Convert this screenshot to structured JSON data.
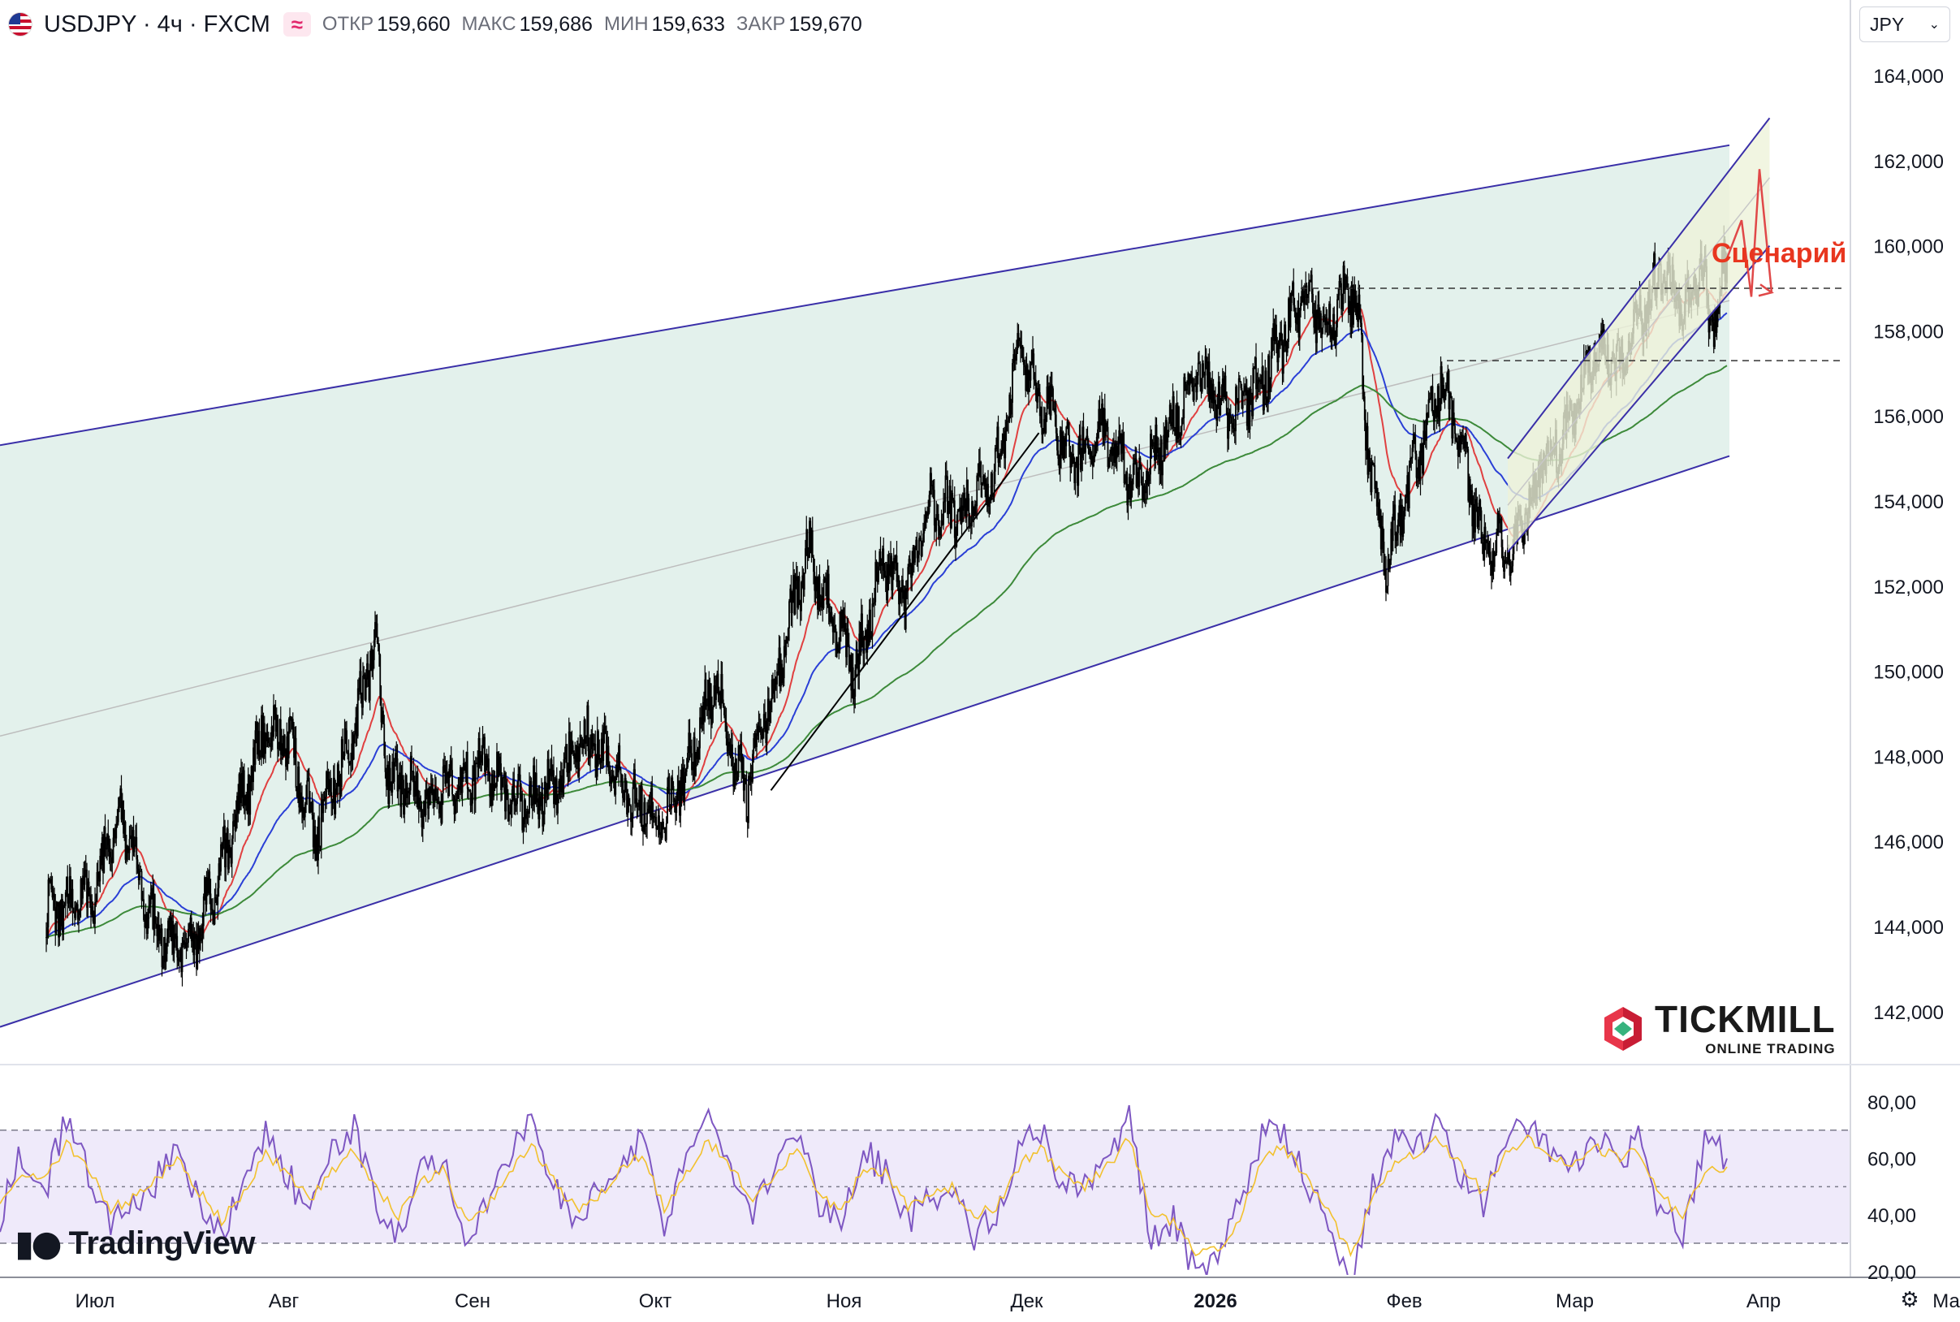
{
  "header": {
    "symbol": "USDJPY · 4ч · FXCM",
    "badge": "≈",
    "open_label": "ОТКР",
    "open_value": "159,660",
    "high_label": "МАКС",
    "high_value": "159,686",
    "low_label": "МИН",
    "low_value": "159,633",
    "close_label": "ЗАКР",
    "close_value": "159,670"
  },
  "currency_button": {
    "label": "JPY",
    "chevron": "chevron-down-icon"
  },
  "watermarks": {
    "tradingview": "TradingView",
    "tickmill": "TICKMILL",
    "tickmill_sub": "ONLINE TRADING"
  },
  "settings_icon": "gear-icon",
  "annotation": {
    "text": "Сценарий",
    "color": "#e8361f"
  },
  "colors": {
    "candle": "#000000",
    "channel_line": "#3a2fa8",
    "channel_fill": "#e3f1ec",
    "ma_fast": "#e04040",
    "ma_mid": "#2a3fd6",
    "ma_slow": "#3d8a3a",
    "rsi_line": "#7e57c2",
    "rsi_signal": "#f2c12e",
    "rsi_fill": "#efeafa"
  },
  "chart_data": [
    {
      "type": "candlestick",
      "title": "USDJPY · 4ч · FXCM",
      "currency": "JPY",
      "x_tick_labels": [
        "Июл",
        "Авг",
        "Сен",
        "Окт",
        "Ноя",
        "Дек",
        "2026",
        "Фев",
        "Мар",
        "Апр",
        "Ма"
      ],
      "y_tick_labels": [
        "164,000",
        "162,000",
        "160,000",
        "158,000",
        "156,000",
        "154,000",
        "152,000",
        "150,000",
        "148,000",
        "146,000",
        "144,000",
        "142,000"
      ],
      "ylim": [
        141.0,
        165.0
      ],
      "close_path": [
        {
          "d": "Jun 23",
          "v": 144.3
        },
        {
          "d": "Jul 01",
          "v": 144.8
        },
        {
          "d": "Jul 05",
          "v": 146.8
        },
        {
          "d": "Jul 11",
          "v": 143.8
        },
        {
          "d": "Jul 16",
          "v": 143.2
        },
        {
          "d": "Jul 22",
          "v": 145.5
        },
        {
          "d": "Jul 29",
          "v": 148.7
        },
        {
          "d": "Aug 02",
          "v": 148.3
        },
        {
          "d": "Aug 06",
          "v": 146.2
        },
        {
          "d": "Aug 12",
          "v": 148.2
        },
        {
          "d": "Aug 16",
          "v": 150.7
        },
        {
          "d": "Aug 18",
          "v": 147.6
        },
        {
          "d": "Aug 25",
          "v": 147.0
        },
        {
          "d": "Sep 03",
          "v": 147.8
        },
        {
          "d": "Sep 08",
          "v": 146.9
        },
        {
          "d": "Sep 15",
          "v": 147.3
        },
        {
          "d": "Sep 20",
          "v": 148.5
        },
        {
          "d": "Sep 27",
          "v": 147.1
        },
        {
          "d": "Oct 02",
          "v": 146.5
        },
        {
          "d": "Oct 06",
          "v": 147.6
        },
        {
          "d": "Oct 11",
          "v": 149.8
        },
        {
          "d": "Oct 14",
          "v": 147.9
        },
        {
          "d": "Oct 16",
          "v": 147.2
        },
        {
          "d": "Oct 22",
          "v": 150.5
        },
        {
          "d": "Oct 26",
          "v": 152.9
        },
        {
          "d": "Oct 30",
          "v": 151.2
        },
        {
          "d": "Nov 03",
          "v": 150.0
        },
        {
          "d": "Nov 07",
          "v": 152.5
        },
        {
          "d": "Nov 11",
          "v": 151.8
        },
        {
          "d": "Nov 15",
          "v": 154.0
        },
        {
          "d": "Nov 20",
          "v": 153.7
        },
        {
          "d": "Nov 26",
          "v": 154.8
        },
        {
          "d": "Nov 30",
          "v": 157.6
        },
        {
          "d": "Dec 04",
          "v": 156.2
        },
        {
          "d": "Dec 08",
          "v": 155.1
        },
        {
          "d": "Dec 14",
          "v": 155.6
        },
        {
          "d": "Dec 19",
          "v": 154.4
        },
        {
          "d": "Dec 24",
          "v": 155.5
        },
        {
          "d": "Dec 29",
          "v": 157.1
        },
        {
          "d": "Jan 03",
          "v": 156.1
        },
        {
          "d": "Jan 09",
          "v": 156.9
        },
        {
          "d": "Jan 15",
          "v": 158.7
        },
        {
          "d": "Jan 19",
          "v": 158.3
        },
        {
          "d": "Jan 24",
          "v": 159.0
        },
        {
          "d": "Jan 26",
          "v": 155.2
        },
        {
          "d": "Jan 29",
          "v": 152.4
        },
        {
          "d": "Feb 03",
          "v": 155.0
        },
        {
          "d": "Feb 07",
          "v": 156.9
        },
        {
          "d": "Feb 10",
          "v": 155.5
        },
        {
          "d": "Feb 14",
          "v": 152.8
        },
        {
          "d": "Feb 19",
          "v": 152.9
        },
        {
          "d": "Feb 24",
          "v": 155.0
        },
        {
          "d": "Feb 28",
          "v": 155.8
        },
        {
          "d": "Mar 04",
          "v": 157.4
        },
        {
          "d": "Mar 08",
          "v": 157.2
        },
        {
          "d": "Mar 12",
          "v": 158.4
        },
        {
          "d": "Mar 15",
          "v": 159.3
        },
        {
          "d": "Mar 19",
          "v": 158.6
        },
        {
          "d": "Mar 22",
          "v": 159.5
        },
        {
          "d": "Mar 23",
          "v": 157.8
        },
        {
          "d": "Mar 26",
          "v": 159.7
        }
      ],
      "series": [
        {
          "name": "",
          "kind": "ma_fast",
          "color": "#e04040"
        },
        {
          "name": "",
          "kind": "ma_mid",
          "color": "#2a3fd6"
        },
        {
          "name": "",
          "kind": "ma_slow",
          "color": "#3d8a3a"
        }
      ],
      "horizontal_levels": [
        159.0,
        157.3
      ],
      "channel": {
        "upper": {
          "from": [
            "Jun 23",
            155.5
          ],
          "to": [
            "Apr 09",
            162.7
          ]
        },
        "lower": {
          "from": [
            "Jun 23",
            142.0
          ],
          "to": [
            "Apr 09",
            155.7
          ]
        }
      },
      "annotation": "Сценарий",
      "grid": false
    },
    {
      "type": "line",
      "title": "",
      "y_tick_labels": [
        "80,00",
        "60,00",
        "40,00",
        "20,00"
      ],
      "ylim": [
        12,
        88
      ],
      "bands": [
        70,
        50,
        30
      ],
      "series": [
        {
          "name": "",
          "color": "#7e57c2",
          "values": [
            40,
            62,
            48,
            75,
            55,
            35,
            44,
            52,
            66,
            44,
            31,
            52,
            69,
            54,
            41,
            62,
            70,
            44,
            34,
            56,
            59,
            30,
            42,
            63,
            72,
            49,
            37,
            47,
            58,
            68,
            35,
            60,
            74,
            56,
            42,
            56,
            72,
            43,
            35,
            64,
            55,
            38,
            46,
            52,
            33,
            42,
            63,
            70,
            52,
            49,
            60,
            75,
            30,
            39,
            19,
            26,
            43,
            68,
            69,
            51,
            36,
            18,
            50,
            66,
            63,
            72,
            54,
            44,
            68,
            72,
            61,
            55,
            69,
            58,
            66,
            42,
            32,
            66,
            60
          ]
        },
        {
          "name": "",
          "color": "#f2c12e",
          "values": [
            46,
            55,
            52,
            65,
            56,
            42,
            46,
            52,
            60,
            48,
            38,
            48,
            61,
            55,
            45,
            56,
            63,
            50,
            40,
            52,
            56,
            38,
            43,
            56,
            65,
            52,
            42,
            47,
            55,
            62,
            42,
            55,
            66,
            57,
            46,
            53,
            64,
            48,
            40,
            57,
            55,
            43,
            46,
            50,
            40,
            43,
            57,
            64,
            54,
            50,
            57,
            67,
            40,
            38,
            26,
            28,
            39,
            60,
            64,
            53,
            41,
            26,
            45,
            60,
            61,
            67,
            57,
            48,
            62,
            67,
            62,
            57,
            64,
            60,
            63,
            48,
            38,
            56,
            57
          ]
        }
      ],
      "grid": false
    }
  ]
}
